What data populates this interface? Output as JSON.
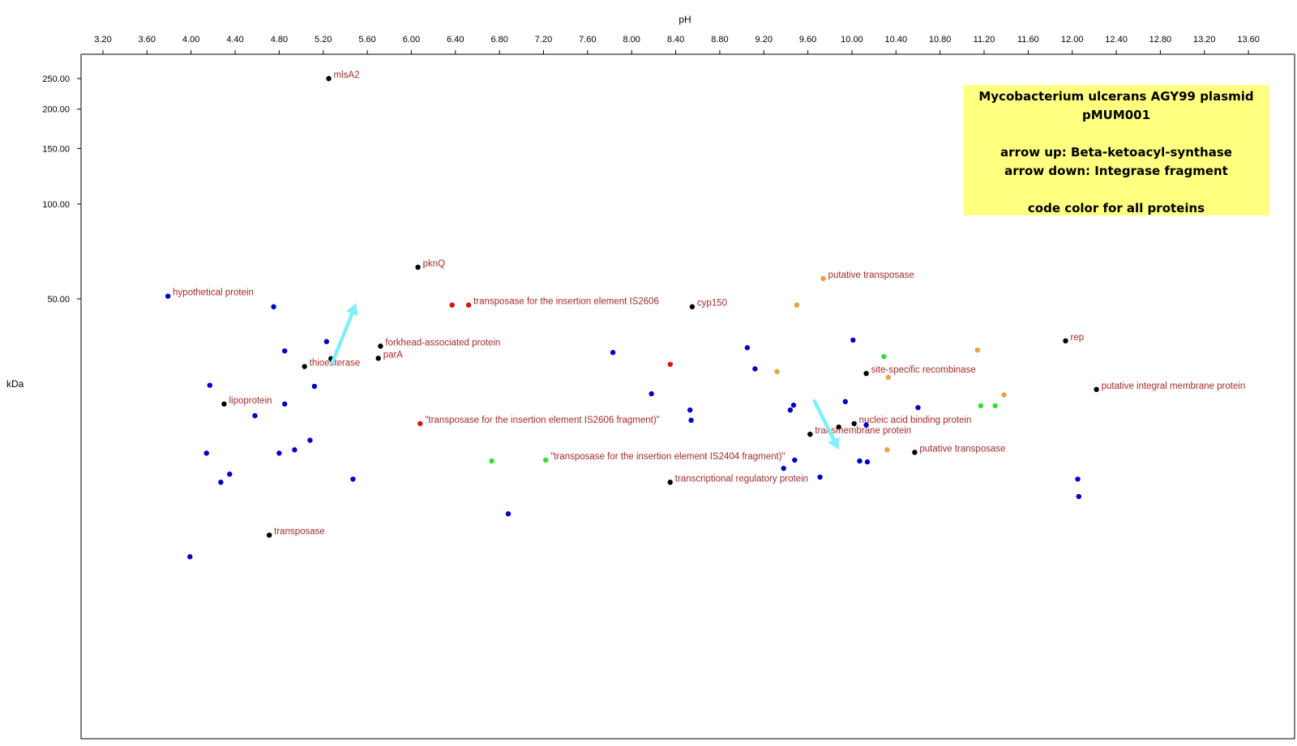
{
  "chart_data": {
    "type": "scatter",
    "xlabel": "pH",
    "ylabel": "kDa",
    "x_ticks": [
      "3.20",
      "3.60",
      "4.00",
      "4.40",
      "4.80",
      "5.20",
      "5.60",
      "6.00",
      "6.40",
      "6.80",
      "7.20",
      "7.60",
      "8.00",
      "8.40",
      "8.80",
      "9.20",
      "9.60",
      "10.00",
      "10.40",
      "10.80",
      "11.20",
      "11.60",
      "12.00",
      "12.40",
      "12.80",
      "13.20",
      "13.60"
    ],
    "y_ticks": [
      "250.00",
      "200.00",
      "150.00",
      "100.00",
      "50.00"
    ],
    "y_tick_values": [
      250,
      200,
      150,
      100,
      50
    ],
    "xlim": [
      3.12,
      13.92
    ],
    "y_scale": "log",
    "grid": false,
    "legend": {
      "placement": "top-right",
      "background": "#ffff80",
      "lines": [
        "Mycobacterium ulcerans AGY99 plasmid",
        "pMUM001",
        "",
        "arrow up: Beta-ketoacyl-synthase",
        "arrow down: Integrase fragment",
        "",
        "code color for all proteins"
      ]
    },
    "colors": {
      "blue": "#0000c8",
      "black": "#000000",
      "red": "#dd1111",
      "orange": "#e8a040",
      "green": "#33dd33",
      "label": "#a52a2a",
      "arrow": "#80f0f8"
    },
    "arrows": [
      {
        "from": [
          5.28,
          31.2
        ],
        "to": [
          5.5,
          48.5
        ]
      },
      {
        "from": [
          9.66,
          23.7
        ],
        "to": [
          9.88,
          16.6
        ]
      }
    ],
    "points": [
      {
        "x": 5.25,
        "y": 250,
        "color": "black",
        "label": "mlsA2"
      },
      {
        "x": 6.06,
        "y": 63,
        "color": "black",
        "label": "pknQ"
      },
      {
        "x": 3.79,
        "y": 51,
        "color": "blue",
        "label": "hypothetical protein"
      },
      {
        "x": 4.75,
        "y": 47.2,
        "color": "blue"
      },
      {
        "x": 6.37,
        "y": 47.8,
        "color": "red"
      },
      {
        "x": 6.52,
        "y": 47.8,
        "color": "red",
        "label": "transposase for the insertion element IS2606"
      },
      {
        "x": 8.55,
        "y": 47.2,
        "color": "black",
        "label": "cyp150"
      },
      {
        "x": 9.74,
        "y": 58,
        "color": "orange",
        "label": "putative transposase"
      },
      {
        "x": 9.5,
        "y": 47.8,
        "color": "orange"
      },
      {
        "x": 5.23,
        "y": 36.6,
        "color": "blue"
      },
      {
        "x": 4.85,
        "y": 34.2,
        "color": "blue"
      },
      {
        "x": 5.72,
        "y": 35.4,
        "color": "black",
        "label": "forkhead-associated protein"
      },
      {
        "x": 5.7,
        "y": 32.4,
        "color": "black",
        "label": "parA"
      },
      {
        "x": 5.27,
        "y": 32.3,
        "color": "black"
      },
      {
        "x": 5.03,
        "y": 30.5,
        "color": "black",
        "label": "thioesterase"
      },
      {
        "x": 7.83,
        "y": 33.8,
        "color": "blue"
      },
      {
        "x": 8.35,
        "y": 31.0,
        "color": "red"
      },
      {
        "x": 9.05,
        "y": 35.0,
        "color": "blue"
      },
      {
        "x": 9.12,
        "y": 30.0,
        "color": "blue"
      },
      {
        "x": 9.32,
        "y": 29.4,
        "color": "orange"
      },
      {
        "x": 10.01,
        "y": 37.0,
        "color": "blue"
      },
      {
        "x": 10.29,
        "y": 32.8,
        "color": "green"
      },
      {
        "x": 10.13,
        "y": 29.0,
        "color": "black",
        "label": "site-specific recombinase"
      },
      {
        "x": 10.33,
        "y": 28.2,
        "color": "orange"
      },
      {
        "x": 11.14,
        "y": 34.4,
        "color": "orange"
      },
      {
        "x": 11.94,
        "y": 36.8,
        "color": "black",
        "label": "rep"
      },
      {
        "x": 4.17,
        "y": 26.6,
        "color": "blue"
      },
      {
        "x": 5.12,
        "y": 26.4,
        "color": "blue"
      },
      {
        "x": 8.18,
        "y": 25.0,
        "color": "blue"
      },
      {
        "x": 11.38,
        "y": 24.8,
        "color": "orange"
      },
      {
        "x": 12.22,
        "y": 25.8,
        "color": "black",
        "label": "putative integral membrane protein"
      },
      {
        "x": 4.3,
        "y": 23.2,
        "color": "black",
        "label": "lipoprotein"
      },
      {
        "x": 4.85,
        "y": 23.2,
        "color": "blue"
      },
      {
        "x": 8.53,
        "y": 22.2,
        "color": "blue"
      },
      {
        "x": 9.47,
        "y": 23.0,
        "color": "blue"
      },
      {
        "x": 9.44,
        "y": 22.2,
        "color": "blue"
      },
      {
        "x": 9.94,
        "y": 23.6,
        "color": "blue"
      },
      {
        "x": 10.6,
        "y": 22.6,
        "color": "blue"
      },
      {
        "x": 11.17,
        "y": 22.9,
        "color": "green"
      },
      {
        "x": 11.3,
        "y": 22.9,
        "color": "green"
      },
      {
        "x": 4.58,
        "y": 21.3,
        "color": "blue"
      },
      {
        "x": 8.54,
        "y": 20.6,
        "color": "blue"
      },
      {
        "x": 6.08,
        "y": 20.1,
        "color": "red",
        "label": "\"transposase for the insertion element IS2606 fragment)\""
      },
      {
        "x": 10.02,
        "y": 20.1,
        "color": "black",
        "label": "nucleic acid binding protein"
      },
      {
        "x": 10.13,
        "y": 19.9,
        "color": "blue"
      },
      {
        "x": 9.88,
        "y": 19.6,
        "color": "black"
      },
      {
        "x": 9.62,
        "y": 18.6,
        "color": "black",
        "label": "transmembrane protein"
      },
      {
        "x": 5.08,
        "y": 17.8,
        "color": "blue"
      },
      {
        "x": 4.94,
        "y": 16.6,
        "color": "blue"
      },
      {
        "x": 4.14,
        "y": 16.2,
        "color": "blue"
      },
      {
        "x": 4.8,
        "y": 16.2,
        "color": "blue"
      },
      {
        "x": 10.32,
        "y": 16.6,
        "color": "orange"
      },
      {
        "x": 10.57,
        "y": 16.3,
        "color": "black",
        "label": "putative transposase"
      },
      {
        "x": 6.73,
        "y": 15.3,
        "color": "green"
      },
      {
        "x": 7.22,
        "y": 15.4,
        "color": "green",
        "label": "\"transposase for the insertion element IS2404 fragment)\""
      },
      {
        "x": 9.48,
        "y": 15.4,
        "color": "blue"
      },
      {
        "x": 10.07,
        "y": 15.3,
        "color": "blue"
      },
      {
        "x": 10.14,
        "y": 15.2,
        "color": "blue"
      },
      {
        "x": 9.38,
        "y": 14.5,
        "color": "blue"
      },
      {
        "x": 4.35,
        "y": 13.9,
        "color": "blue"
      },
      {
        "x": 4.27,
        "y": 13.1,
        "color": "blue"
      },
      {
        "x": 5.47,
        "y": 13.4,
        "color": "blue"
      },
      {
        "x": 9.71,
        "y": 13.6,
        "color": "blue"
      },
      {
        "x": 8.35,
        "y": 13.1,
        "color": "black",
        "label": "transcriptional regulatory protein"
      },
      {
        "x": 12.05,
        "y": 13.4,
        "color": "blue"
      },
      {
        "x": 12.06,
        "y": 11.8,
        "color": "blue"
      },
      {
        "x": 6.88,
        "y": 10.4,
        "color": "blue"
      },
      {
        "x": 4.71,
        "y": 8.9,
        "color": "black",
        "label": "transposase"
      },
      {
        "x": 3.99,
        "y": 7.6,
        "color": "blue"
      }
    ]
  }
}
